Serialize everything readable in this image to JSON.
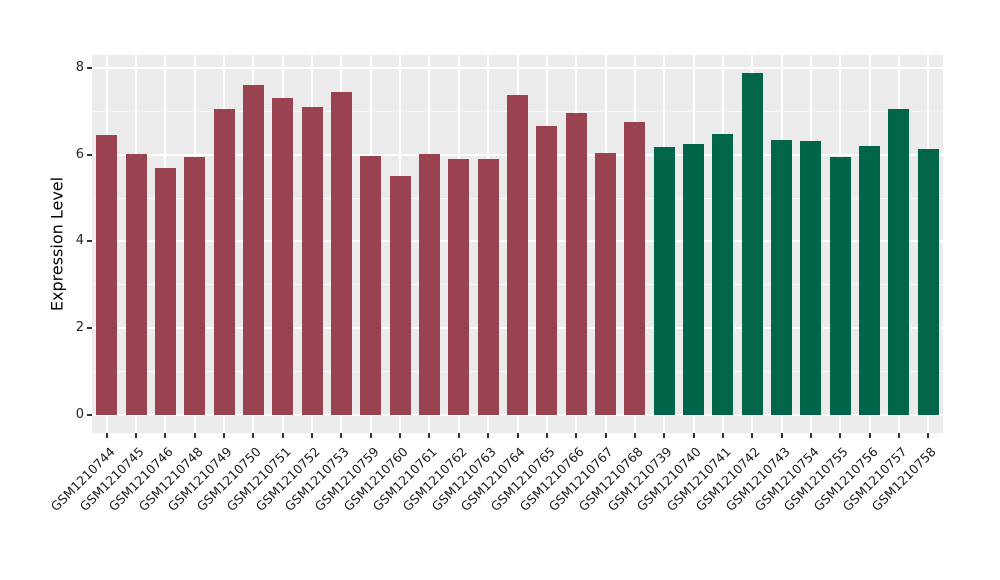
{
  "chart_data": {
    "type": "bar",
    "title": "",
    "xlabel": "",
    "ylabel": "Expression Level",
    "ylim": [
      0,
      8
    ],
    "axis_extension": [
      -0.415,
      8.295
    ],
    "yticks": [
      0,
      2,
      4,
      6,
      8
    ],
    "yticks_minor": [
      1,
      3,
      5,
      7
    ],
    "grid": "on",
    "legend": "none",
    "panel_bg": "#ebebeb",
    "grid_color": "#ffffff",
    "categories": [
      "GSM1210744",
      "GSM1210745",
      "GSM1210746",
      "GSM1210748",
      "GSM1210749",
      "GSM1210750",
      "GSM1210751",
      "GSM1210752",
      "GSM1210753",
      "GSM1210759",
      "GSM1210760",
      "GSM1210761",
      "GSM1210762",
      "GSM1210763",
      "GSM1210764",
      "GSM1210765",
      "GSM1210766",
      "GSM1210767",
      "GSM1210768",
      "GSM1210739",
      "GSM1210740",
      "GSM1210741",
      "GSM1210742",
      "GSM1210743",
      "GSM1210754",
      "GSM1210755",
      "GSM1210756",
      "GSM1210757",
      "GSM1210758"
    ],
    "values": [
      6.45,
      6.01,
      5.7,
      5.95,
      7.05,
      7.6,
      7.31,
      7.1,
      7.44,
      5.97,
      5.5,
      6.02,
      5.9,
      5.9,
      7.37,
      6.66,
      6.95,
      6.03,
      6.76,
      6.18,
      6.25,
      6.48,
      7.87,
      6.33,
      6.31,
      5.95,
      6.21,
      7.05,
      6.14
    ],
    "groups": [
      "crimson",
      "crimson",
      "crimson",
      "crimson",
      "crimson",
      "crimson",
      "crimson",
      "crimson",
      "crimson",
      "crimson",
      "crimson",
      "crimson",
      "crimson",
      "crimson",
      "crimson",
      "crimson",
      "crimson",
      "crimson",
      "crimson",
      "green",
      "green",
      "green",
      "green",
      "green",
      "green",
      "green",
      "green",
      "green",
      "green"
    ],
    "group_colors": {
      "crimson": "#9a4350",
      "green": "#016649"
    }
  }
}
